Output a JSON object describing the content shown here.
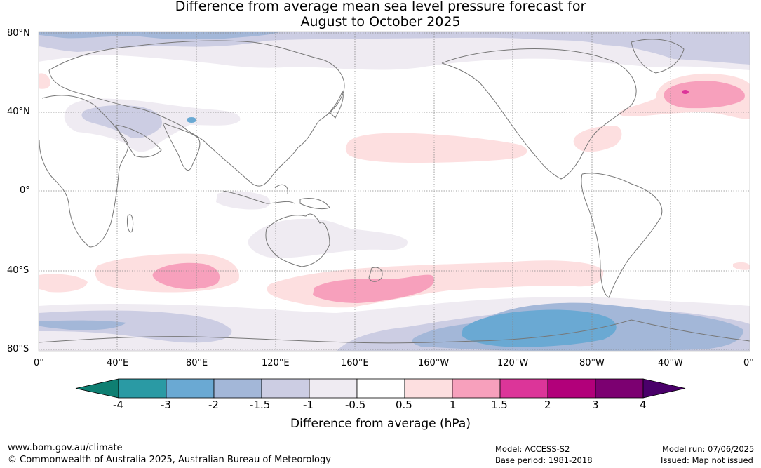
{
  "title": {
    "line1": "Difference from average mean sea level pressure forecast for",
    "line2": "August to October 2025"
  },
  "map": {
    "lat_labels": [
      "80°N",
      "40°N",
      "0°",
      "40°S",
      "80°S"
    ],
    "lon_labels": [
      "0°",
      "40°E",
      "80°E",
      "120°E",
      "160°E",
      "160°W",
      "120°W",
      "80°W",
      "40°W",
      "0°"
    ]
  },
  "colorbar": {
    "ticks": [
      "-4",
      "-3",
      "-2",
      "-1.5",
      "-1",
      "-0.5",
      "0.5",
      "1",
      "1.5",
      "2",
      "3",
      "4"
    ],
    "colors": [
      "#0e7f72",
      "#2a9aa4",
      "#6aa9d3",
      "#a3b7d8",
      "#cccde3",
      "#efebf2",
      "#ffffff",
      "#fddfe0",
      "#f7a0bc",
      "#dc3599",
      "#b2007a",
      "#7c0071",
      "#4a006a"
    ],
    "label": "Difference from average (hPa)"
  },
  "footer": {
    "url": "www.bom.gov.au/climate",
    "copyright": "© Commonwealth of Australia 2025, Australian Bureau of Meteorology",
    "model": "Model: ACCESS-S2",
    "base_period": "Base period: 1981-2018",
    "model_run": "Model run: 07/06/2025",
    "issued": "Issued: Map not issued"
  }
}
